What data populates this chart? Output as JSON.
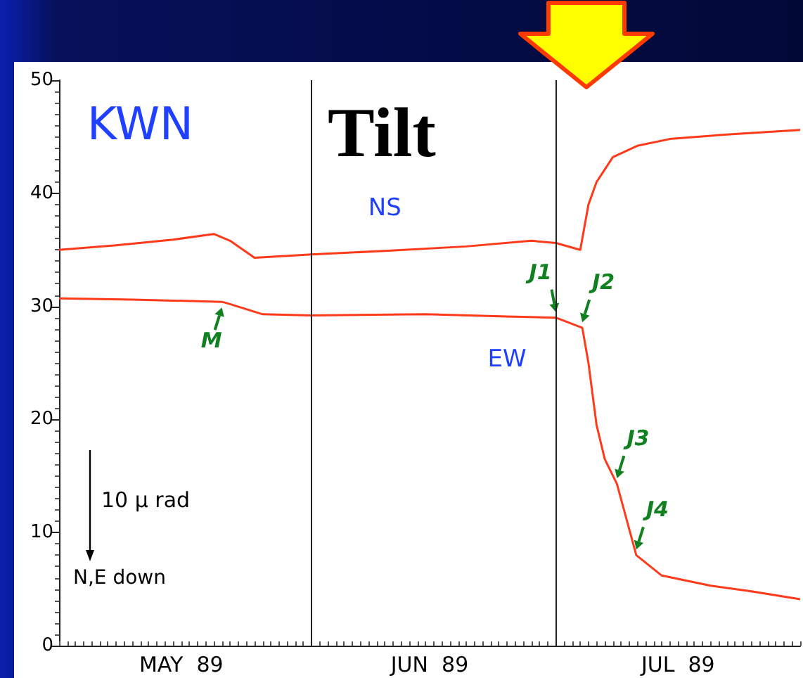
{
  "chart_data": {
    "type": "line",
    "title": "Tilt",
    "x": [
      "1989-05-01",
      "1989-05-08",
      "1989-05-15",
      "1989-05-20",
      "1989-05-22",
      "1989-05-25",
      "1989-06-01",
      "1989-06-10",
      "1989-06-20",
      "1989-06-28",
      "1989-07-01",
      "1989-07-04",
      "1989-07-05",
      "1989-07-06",
      "1989-07-08",
      "1989-07-11",
      "1989-07-15",
      "1989-07-22",
      "1989-07-31"
    ],
    "series": [
      {
        "name": "NS",
        "color": "#ff3a1a",
        "values": [
          35.0,
          35.4,
          35.9,
          36.4,
          35.8,
          34.3,
          34.6,
          34.9,
          35.3,
          35.8,
          35.6,
          35.0,
          39.0,
          41.0,
          43.2,
          44.2,
          44.8,
          45.2,
          45.6
        ]
      },
      {
        "name": "EW",
        "color": "#ff3a1a",
        "x": [
          "1989-05-01",
          "1989-05-10",
          "1989-05-21",
          "1989-05-22",
          "1989-05-26",
          "1989-06-01",
          "1989-06-15",
          "1989-06-25",
          "1989-07-01",
          "1989-07-04T06:00",
          "1989-07-05",
          "1989-07-06",
          "1989-07-07",
          "1989-07-08T12:00",
          "1989-07-10T21:00",
          "1989-07-14",
          "1989-07-20",
          "1989-07-25",
          "1989-07-31"
        ],
        "values": [
          30.7,
          30.6,
          30.4,
          30.2,
          29.3,
          29.2,
          29.3,
          29.1,
          29.0,
          28.1,
          25.0,
          19.5,
          16.5,
          14.3,
          8.0,
          6.2,
          5.3,
          4.8,
          4.1
        ]
      }
    ],
    "xlim": [
      "1989-05-01",
      "1989-07-31"
    ],
    "xticks": [
      {
        "value": "1989-05-16",
        "label": "MAY  89"
      },
      {
        "value": "1989-06-15T12:00",
        "label": "JUN  89"
      },
      {
        "value": "1989-07-16",
        "label": "JUL  89"
      }
    ],
    "ylim": [
      0,
      50
    ],
    "yticks": [
      0,
      10,
      20,
      30,
      40,
      50
    ],
    "grid": false,
    "legend": false,
    "marker": "none",
    "line_style": "solid",
    "ref_lines": [
      {
        "axis": "x",
        "value": "1989-06-01",
        "label": null,
        "color": "#222222"
      },
      {
        "axis": "x",
        "value": "1989-07-01",
        "label": null,
        "color": "#222222"
      }
    ],
    "annotations": [
      "KWN",
      "10 μ rad",
      "N,E down",
      {
        "text": "M",
        "x": "1989-05-21",
        "y": 30.4
      },
      {
        "text": "J1",
        "x": "1989-07-01",
        "y": 29.0
      },
      {
        "text": "J2",
        "x": "1989-07-04T06:00",
        "y": 28.1
      },
      {
        "text": "J3",
        "x": "1989-07-08T12:00",
        "y": 14.3
      },
      {
        "text": "J4",
        "x": "1989-07-10T21:00",
        "y": 8.0
      }
    ]
  }
}
